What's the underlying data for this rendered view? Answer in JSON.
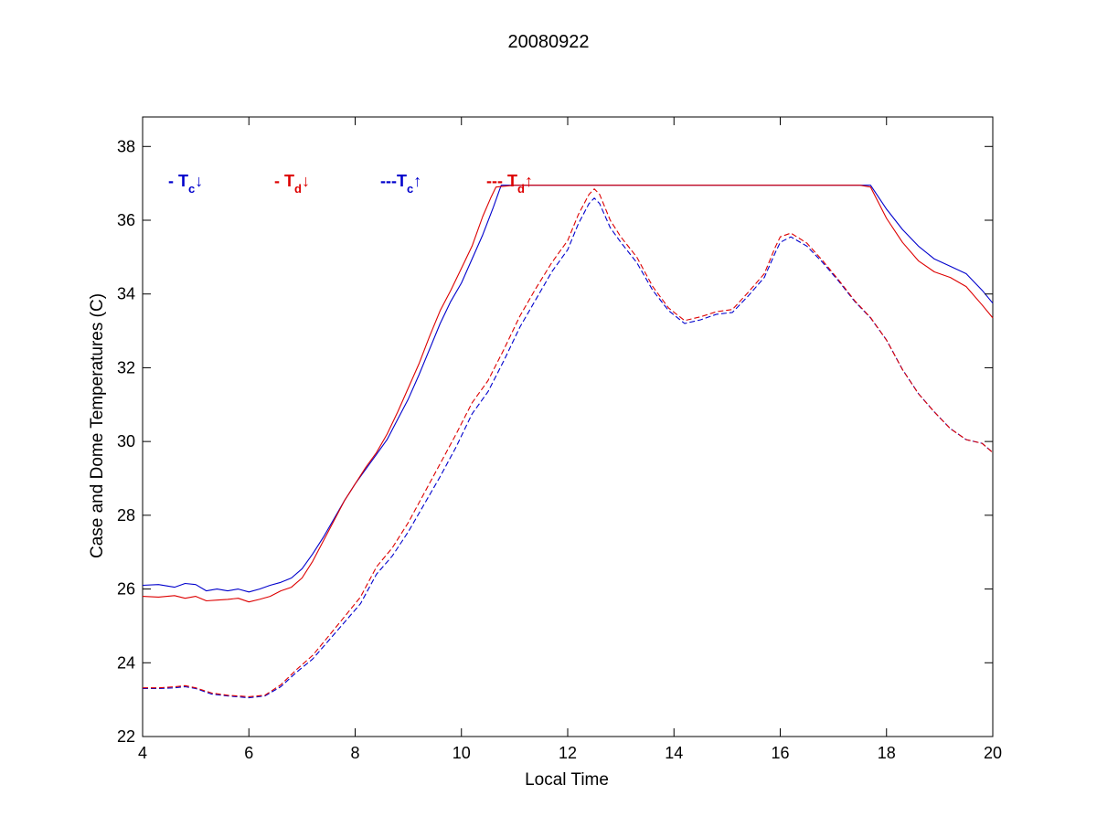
{
  "chart_data": {
    "type": "line",
    "title": "20080922",
    "xlabel": "Local Time",
    "ylabel": "Case and Dome Temperatures (C)",
    "xlim": [
      4,
      20
    ],
    "ylim": [
      22,
      38.8
    ],
    "xticks": [
      4,
      6,
      8,
      10,
      12,
      14,
      16,
      18,
      20
    ],
    "yticks": [
      22,
      24,
      26,
      28,
      30,
      32,
      34,
      36,
      38
    ],
    "grid": false,
    "legend_placement": "top-left inside plot",
    "series": [
      {
        "name": "- Tc↓",
        "legend": {
          "prefix": "- T",
          "sub": "c",
          "arrow": "↓"
        },
        "color": "#0000cc",
        "style": "solid",
        "x": [
          4.0,
          4.3,
          4.6,
          4.8,
          5.0,
          5.2,
          5.4,
          5.6,
          5.8,
          6.0,
          6.2,
          6.4,
          6.6,
          6.8,
          7.0,
          7.2,
          7.4,
          7.6,
          7.8,
          8.0,
          8.2,
          8.4,
          8.6,
          8.8,
          9.0,
          9.2,
          9.4,
          9.6,
          9.8,
          10.0,
          10.2,
          10.4,
          10.6,
          10.7,
          10.75,
          11.0,
          12.0,
          13.0,
          14.0,
          15.0,
          16.0,
          17.0,
          17.5,
          17.7,
          18.0,
          18.3,
          18.6,
          18.9,
          19.2,
          19.5,
          19.8,
          20.0
        ],
        "y": [
          26.1,
          26.12,
          26.05,
          26.15,
          26.12,
          25.95,
          26.0,
          25.95,
          26.0,
          25.92,
          26.0,
          26.1,
          26.18,
          26.3,
          26.55,
          26.95,
          27.4,
          27.9,
          28.4,
          28.85,
          29.25,
          29.65,
          30.05,
          30.6,
          31.15,
          31.8,
          32.5,
          33.2,
          33.8,
          34.3,
          34.95,
          35.6,
          36.35,
          36.75,
          36.95,
          36.95,
          36.95,
          36.95,
          36.95,
          36.95,
          36.95,
          36.95,
          36.95,
          36.95,
          36.3,
          35.75,
          35.3,
          34.95,
          34.75,
          34.55,
          34.1,
          33.75
        ]
      },
      {
        "name": "- Td↓",
        "legend": {
          "prefix": "- T",
          "sub": "d",
          "arrow": "↓"
        },
        "color": "#dd0000",
        "style": "solid",
        "x": [
          4.0,
          4.3,
          4.6,
          4.8,
          5.0,
          5.2,
          5.4,
          5.6,
          5.8,
          6.0,
          6.2,
          6.4,
          6.6,
          6.8,
          7.0,
          7.2,
          7.4,
          7.6,
          7.8,
          8.0,
          8.2,
          8.4,
          8.6,
          8.8,
          9.0,
          9.2,
          9.4,
          9.6,
          9.8,
          10.0,
          10.2,
          10.4,
          10.55,
          10.65,
          11.0,
          12.0,
          13.0,
          14.0,
          15.0,
          16.0,
          17.0,
          17.5,
          17.7,
          18.0,
          18.3,
          18.6,
          18.9,
          19.2,
          19.5,
          19.8,
          20.0
        ],
        "y": [
          25.8,
          25.78,
          25.82,
          25.75,
          25.8,
          25.68,
          25.7,
          25.72,
          25.75,
          25.65,
          25.72,
          25.8,
          25.95,
          26.05,
          26.3,
          26.75,
          27.3,
          27.85,
          28.4,
          28.85,
          29.3,
          29.7,
          30.2,
          30.8,
          31.45,
          32.1,
          32.85,
          33.55,
          34.1,
          34.7,
          35.3,
          36.1,
          36.6,
          36.9,
          36.95,
          36.95,
          36.95,
          36.95,
          36.95,
          36.95,
          36.95,
          36.95,
          36.9,
          36.05,
          35.4,
          34.9,
          34.6,
          34.45,
          34.2,
          33.7,
          33.35
        ]
      },
      {
        "name": "---Tc↑",
        "legend": {
          "prefix": "---T",
          "sub": "c",
          "arrow": "↑"
        },
        "color": "#0000cc",
        "style": "dashed",
        "x": [
          4.0,
          4.3,
          4.6,
          4.8,
          5.0,
          5.3,
          5.6,
          6.0,
          6.3,
          6.6,
          6.9,
          7.2,
          7.5,
          7.8,
          8.1,
          8.4,
          8.7,
          9.0,
          9.3,
          9.6,
          9.9,
          10.2,
          10.5,
          10.8,
          11.1,
          11.4,
          11.7,
          12.0,
          12.2,
          12.4,
          12.5,
          12.6,
          12.8,
          13.0,
          13.3,
          13.6,
          13.9,
          14.2,
          14.5,
          14.8,
          15.1,
          15.4,
          15.7,
          15.9,
          16.0,
          16.2,
          16.5,
          16.8,
          17.1,
          17.4,
          17.7,
          18.0,
          18.3,
          18.6,
          18.9,
          19.2,
          19.5,
          19.8,
          20.0
        ],
        "y": [
          23.3,
          23.3,
          23.32,
          23.35,
          23.3,
          23.15,
          23.1,
          23.05,
          23.1,
          23.35,
          23.75,
          24.1,
          24.6,
          25.1,
          25.6,
          26.4,
          26.9,
          27.55,
          28.3,
          29.05,
          29.85,
          30.75,
          31.35,
          32.2,
          33.1,
          33.85,
          34.6,
          35.2,
          35.9,
          36.45,
          36.6,
          36.45,
          35.8,
          35.4,
          34.85,
          34.1,
          33.55,
          33.2,
          33.3,
          33.45,
          33.5,
          33.95,
          34.45,
          35.1,
          35.4,
          35.55,
          35.3,
          34.85,
          34.35,
          33.8,
          33.35,
          32.75,
          31.95,
          31.3,
          30.8,
          30.35,
          30.05,
          29.95,
          29.7
        ]
      },
      {
        "name": "--- Td↑",
        "legend": {
          "prefix": "--- T",
          "sub": "d",
          "arrow": "↑"
        },
        "color": "#dd0000",
        "style": "dashed",
        "x": [
          4.0,
          4.3,
          4.6,
          4.8,
          5.0,
          5.3,
          5.6,
          6.0,
          6.3,
          6.6,
          6.9,
          7.2,
          7.5,
          7.8,
          8.1,
          8.4,
          8.7,
          9.0,
          9.3,
          9.6,
          9.9,
          10.2,
          10.5,
          10.8,
          11.1,
          11.4,
          11.7,
          12.0,
          12.2,
          12.4,
          12.5,
          12.6,
          12.8,
          13.0,
          13.3,
          13.6,
          13.9,
          14.2,
          14.5,
          14.8,
          15.1,
          15.4,
          15.7,
          15.9,
          16.0,
          16.2,
          16.5,
          16.8,
          17.1,
          17.4,
          17.7,
          18.0,
          18.3,
          18.6,
          18.9,
          19.2,
          19.5,
          19.8,
          20.0
        ],
        "y": [
          23.32,
          23.32,
          23.35,
          23.38,
          23.32,
          23.18,
          23.12,
          23.08,
          23.12,
          23.4,
          23.82,
          24.2,
          24.72,
          25.25,
          25.78,
          26.6,
          27.12,
          27.8,
          28.6,
          29.4,
          30.2,
          31.05,
          31.65,
          32.5,
          33.4,
          34.15,
          34.85,
          35.45,
          36.15,
          36.7,
          36.85,
          36.7,
          36.0,
          35.55,
          35.0,
          34.2,
          33.62,
          33.28,
          33.38,
          33.52,
          33.58,
          34.05,
          34.55,
          35.25,
          35.55,
          35.65,
          35.38,
          34.9,
          34.38,
          33.82,
          33.36,
          32.75,
          31.95,
          31.3,
          30.8,
          30.35,
          30.05,
          29.95,
          29.7
        ]
      }
    ]
  }
}
